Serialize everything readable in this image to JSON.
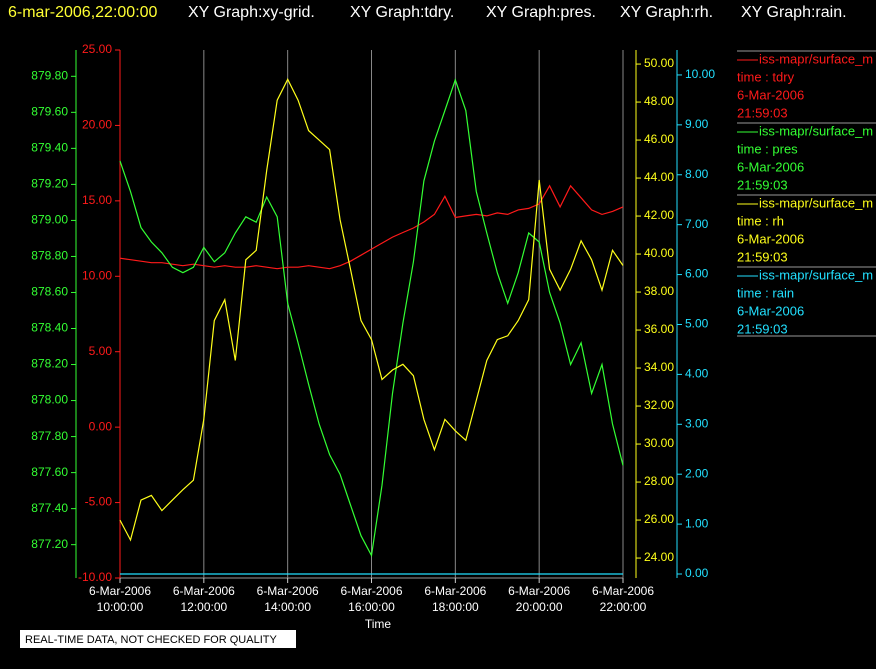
{
  "chart_data": {
    "type": "line",
    "title": "6-mar-2006,22:00:00",
    "subtitles": [
      "XY Graph:xy-grid.",
      "XY Graph:tdry.",
      "XY Graph:pres.",
      "XY Graph:rh.",
      "XY Graph:rain."
    ],
    "x_label": "Time",
    "footnote": "REAL-TIME DATA, NOT CHECKED FOR QUALITY",
    "grid": true,
    "xlim": [
      10,
      22
    ],
    "xticks": [
      {
        "value": 10,
        "label": "10:00:00",
        "date": "6-Mar-2006"
      },
      {
        "value": 12,
        "label": "12:00:00",
        "date": "6-Mar-2006"
      },
      {
        "value": 14,
        "label": "14:00:00",
        "date": "6-Mar-2006"
      },
      {
        "value": 16,
        "label": "16:00:00",
        "date": "6-Mar-2006"
      },
      {
        "value": 18,
        "label": "18:00:00",
        "date": "6-Mar-2006"
      },
      {
        "value": 20,
        "label": "20:00:00",
        "date": "6-Mar-2006"
      },
      {
        "value": 22,
        "label": "22:00:00",
        "date": "6-Mar-2006"
      }
    ],
    "ylim": [
      -10,
      25
    ],
    "yticks": [
      {
        "value": 25,
        "label": "25.00"
      },
      {
        "value": 20,
        "label": "20.00"
      },
      {
        "value": 15,
        "label": "15.00"
      },
      {
        "value": 10,
        "label": "10.00"
      },
      {
        "value": 5,
        "label": "5.00"
      },
      {
        "value": 0,
        "label": "0.00"
      },
      {
        "value": -5,
        "label": "-5.00"
      },
      {
        "value": -10,
        "label": "-10.00"
      }
    ],
    "y2lim": [
      877.015,
      879.946
    ],
    "y2ticks": [
      {
        "value": 879.8,
        "label": "879.80"
      },
      {
        "value": 879.6,
        "label": "879.60"
      },
      {
        "value": 879.4,
        "label": "879.40"
      },
      {
        "value": 879.2,
        "label": "879.20"
      },
      {
        "value": 879.0,
        "label": "879.00"
      },
      {
        "value": 878.8,
        "label": "878.80"
      },
      {
        "value": 878.6,
        "label": "878.60"
      },
      {
        "value": 878.4,
        "label": "878.40"
      },
      {
        "value": 878.2,
        "label": "878.20"
      },
      {
        "value": 878.0,
        "label": "878.00"
      },
      {
        "value": 877.8,
        "label": "877.80"
      },
      {
        "value": 877.6,
        "label": "877.60"
      },
      {
        "value": 877.4,
        "label": "877.40"
      },
      {
        "value": 877.2,
        "label": "877.20"
      }
    ],
    "y3lim": [
      22.95,
      50.74
    ],
    "y3ticks": [
      {
        "value": 50,
        "label": "50.00"
      },
      {
        "value": 48,
        "label": "48.00"
      },
      {
        "value": 46,
        "label": "46.00"
      },
      {
        "value": 44,
        "label": "44.00"
      },
      {
        "value": 42,
        "label": "42.00"
      },
      {
        "value": 40,
        "label": "40.00"
      },
      {
        "value": 38,
        "label": "38.00"
      },
      {
        "value": 36,
        "label": "36.00"
      },
      {
        "value": 34,
        "label": "34.00"
      },
      {
        "value": 32,
        "label": "32.00"
      },
      {
        "value": 30,
        "label": "30.00"
      },
      {
        "value": 28,
        "label": "28.00"
      },
      {
        "value": 26,
        "label": "26.00"
      },
      {
        "value": 24,
        "label": "24.00"
      }
    ],
    "y4lim": [
      -0.08,
      10.5
    ],
    "y4ticks": [
      {
        "value": 10,
        "label": "10.00"
      },
      {
        "value": 9,
        "label": "9.00"
      },
      {
        "value": 8,
        "label": "8.00"
      },
      {
        "value": 7,
        "label": "7.00"
      },
      {
        "value": 6,
        "label": "6.00"
      },
      {
        "value": 5,
        "label": "5.00"
      },
      {
        "value": 4,
        "label": "4.00"
      },
      {
        "value": 3,
        "label": "3.00"
      },
      {
        "value": 2,
        "label": "2.00"
      },
      {
        "value": 1,
        "label": "1.00"
      },
      {
        "value": 0,
        "label": "0.00"
      }
    ],
    "x": [
      10,
      10.25,
      10.5,
      10.75,
      11,
      11.25,
      11.5,
      11.75,
      12,
      12.25,
      12.5,
      12.75,
      13,
      13.25,
      13.5,
      13.75,
      14,
      14.25,
      14.5,
      14.75,
      15,
      15.25,
      15.5,
      15.75,
      16,
      16.25,
      16.5,
      16.75,
      17,
      17.25,
      17.5,
      17.75,
      18,
      18.25,
      18.5,
      18.75,
      19,
      19.25,
      19.5,
      19.75,
      20,
      20.25,
      20.5,
      20.75,
      21,
      21.25,
      21.5,
      21.75,
      22
    ],
    "series": [
      {
        "name": "iss-mapr/surface_m",
        "legend_label": "time : tdry",
        "legend_date": "6-Mar-2006",
        "legend_time": "21:59:03",
        "color": "#ff1a1a",
        "axis": "y",
        "values": [
          11.2,
          11.1,
          11.0,
          10.9,
          10.9,
          10.8,
          10.7,
          10.8,
          10.7,
          10.6,
          10.7,
          10.6,
          10.6,
          10.7,
          10.6,
          10.5,
          10.6,
          10.6,
          10.7,
          10.6,
          10.5,
          10.7,
          11.0,
          11.4,
          11.8,
          12.2,
          12.6,
          12.9,
          13.2,
          13.6,
          14.1,
          15.3,
          13.9,
          14.0,
          14.1,
          14.0,
          14.2,
          14.1,
          14.4,
          14.5,
          14.8,
          16.0,
          14.6,
          16.0,
          15.2,
          14.4,
          14.1,
          14.3,
          14.6
        ]
      },
      {
        "name": "iss-mapr/surface_m",
        "legend_label": "time : pres",
        "legend_date": "6-Mar-2006",
        "legend_time": "21:59:03",
        "color": "#33ff33",
        "axis": "y2",
        "values": [
          879.33,
          879.16,
          878.96,
          878.88,
          878.82,
          878.74,
          878.71,
          878.74,
          878.85,
          878.77,
          878.82,
          878.93,
          879.02,
          878.99,
          879.13,
          879.02,
          878.54,
          878.32,
          878.09,
          877.87,
          877.7,
          877.59,
          877.42,
          877.25,
          877.14,
          877.53,
          878.04,
          878.43,
          878.77,
          879.22,
          879.44,
          879.61,
          879.78,
          879.61,
          879.16,
          878.93,
          878.71,
          878.54,
          878.71,
          878.93,
          878.88,
          878.6,
          878.43,
          878.2,
          878.32,
          878.04,
          878.2,
          877.87,
          877.64
        ]
      },
      {
        "name": "iss-mapr/surface_m",
        "legend_label": "time : rh",
        "legend_date": "6-Mar-2006",
        "legend_time": "21:59:03",
        "color": "#ffff1a",
        "axis": "y3",
        "values": [
          26.0,
          24.95,
          27.05,
          27.3,
          26.5,
          27.05,
          27.6,
          28.1,
          31.3,
          36.5,
          37.6,
          34.4,
          39.7,
          40.2,
          44.4,
          48.1,
          49.2,
          48.1,
          46.5,
          46.0,
          45.5,
          41.8,
          39.2,
          36.5,
          35.5,
          33.4,
          33.9,
          34.2,
          33.6,
          31.3,
          29.7,
          31.3,
          30.7,
          30.2,
          32.3,
          34.4,
          35.5,
          35.7,
          36.5,
          37.6,
          43.9,
          39.2,
          38.1,
          39.2,
          40.7,
          39.7,
          38.1,
          40.2,
          39.4
        ]
      },
      {
        "name": "iss-mapr/surface_m",
        "legend_label": "time : rain",
        "legend_date": "6-Mar-2006",
        "legend_time": "21:59:03",
        "color": "#22e0ff",
        "axis": "y4",
        "values": [
          0,
          0,
          0,
          0,
          0,
          0,
          0,
          0,
          0,
          0,
          0,
          0,
          0,
          0,
          0,
          0,
          0,
          0,
          0,
          0,
          0,
          0,
          0,
          0,
          0,
          0,
          0,
          0,
          0,
          0,
          0,
          0,
          0,
          0,
          0,
          0,
          0,
          0,
          0,
          0,
          0,
          0,
          0,
          0,
          0,
          0,
          0,
          0,
          0
        ]
      }
    ]
  }
}
